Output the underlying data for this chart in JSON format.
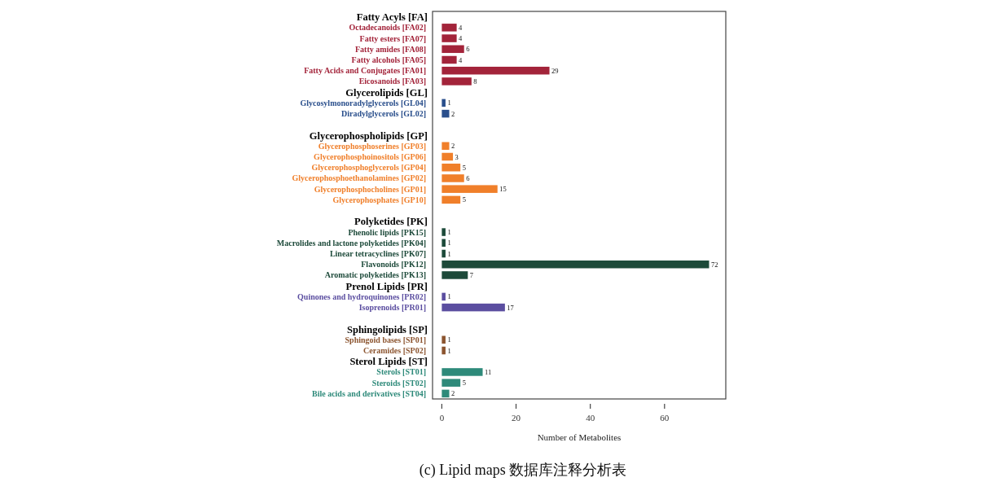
{
  "chart_data": {
    "type": "bar",
    "orientation": "horizontal",
    "xlabel": "Number of Metabolites",
    "data_labels": true,
    "categories": [
      "Fatty Acyls [FA]",
      "Octadecanoids [FA02]",
      "Fatty esters [FA07]",
      "Fatty amides [FA08]",
      "Fatty alcohols [FA05]",
      "Fatty Acids and Conjugates [FA01]",
      "Eicosanoids [FA03]",
      "Glycerolipids [GL]",
      "Glycosylmonoradylglycerols [GL04]",
      "Diradylglycerols [GL02]",
      null,
      "Glycerophospholipids [GP]",
      "Glycerophosphoserines [GP03]",
      "Glycerophosphoinositols [GP06]",
      "Glycerophosphoglycerols [GP04]",
      "Glycerophosphoethanolamines [GP02]",
      "Glycerophosphocholines [GP01]",
      "Glycerophosphates [GP10]",
      null,
      "Polyketides [PK]",
      "Phenolic lipids [PK15]",
      "Macrolides and lactone polyketides [PK04]",
      "Linear tetracyclines [PK07]",
      "Flavonoids [PK12]",
      "Aromatic polyketides [PK13]",
      "Prenol Lipids [PR]",
      "Quinones and hydroquinones [PR02]",
      "Isoprenoids [PR01]",
      null,
      "Sphingolipids [SP]",
      "Sphingoid bases [SP01]",
      "Ceramides [SP02]",
      "Sterol Lipids [ST]",
      "Sterols [ST01]",
      "Steroids [ST02]",
      "Bile acids and derivatives [ST04]"
    ],
    "values": [
      null,
      4,
      4,
      6,
      4,
      29,
      8,
      null,
      1,
      2,
      null,
      null,
      2,
      3,
      5,
      6,
      15,
      5,
      null,
      null,
      1,
      1,
      1,
      72,
      7,
      null,
      1,
      17,
      null,
      null,
      1,
      1,
      null,
      11,
      5,
      2
    ],
    "colors": [
      "#000000",
      "#a3243a",
      "#a3243a",
      "#a3243a",
      "#a3243a",
      "#a3243a",
      "#a3243a",
      "#000000",
      "#2a4f8c",
      "#2a4f8c",
      "#000000",
      "#000000",
      "#f07f2a",
      "#f07f2a",
      "#f07f2a",
      "#f07f2a",
      "#f07f2a",
      "#f07f2a",
      "#000000",
      "#000000",
      "#1d4a3a",
      "#1d4a3a",
      "#1d4a3a",
      "#1d4a3a",
      "#1d4a3a",
      "#000000",
      "#5b4ea0",
      "#5b4ea0",
      "#000000",
      "#000000",
      "#8c5530",
      "#8c5530",
      "#000000",
      "#2e8a7a",
      "#2e8a7a",
      "#2e8a7a"
    ],
    "xlim": [
      -2.5,
      76.5
    ],
    "xticks": [
      0,
      20,
      40,
      60
    ],
    "annotations": [
      "(c) Lipid maps 数据库注释分析表"
    ]
  }
}
